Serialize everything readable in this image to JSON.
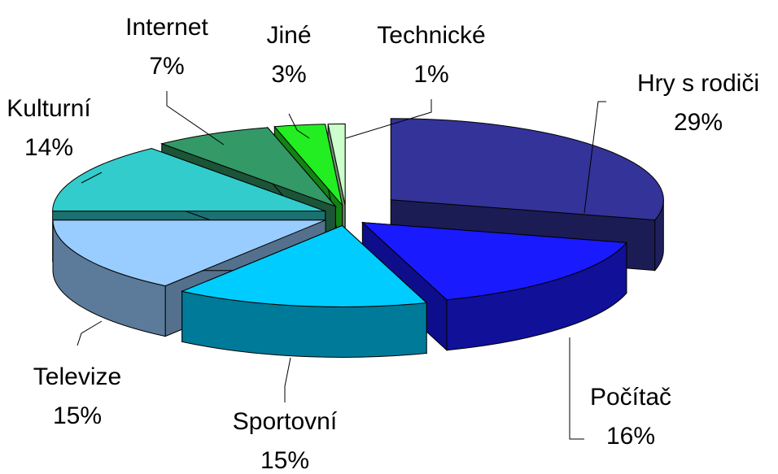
{
  "chart_data": {
    "type": "pie",
    "categories": [
      "Hry s rodiči",
      "Počítač",
      "Sportovní",
      "Televize",
      "Kulturní",
      "Internet",
      "Jiné",
      "Technické"
    ],
    "values": [
      29,
      16,
      15,
      15,
      14,
      7,
      3,
      1
    ],
    "value_labels": [
      "29%",
      "16%",
      "15%",
      "15%",
      "14%",
      "7%",
      "3%",
      "1%"
    ],
    "colors": [
      "#333399",
      "#1a1aff",
      "#00ccff",
      "#99ccff",
      "#33cccc",
      "#339966",
      "#22ee22",
      "#ccffcc"
    ]
  }
}
